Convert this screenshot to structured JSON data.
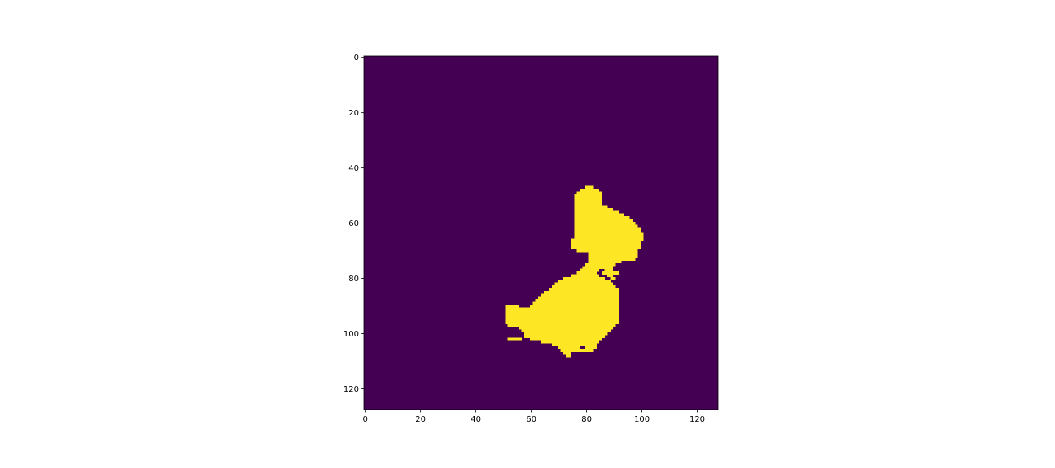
{
  "chart_data": {
    "type": "heatmap",
    "title": "",
    "xlabel": "",
    "ylabel": "",
    "grid": false,
    "xlim": [
      0,
      128
    ],
    "ylim": [
      128,
      0
    ],
    "x_ticks": [
      "0",
      "20",
      "40",
      "60",
      "80",
      "100",
      "120"
    ],
    "y_ticks": [
      "0",
      "20",
      "40",
      "60",
      "80",
      "100",
      "120"
    ],
    "background_value": 0,
    "foreground_value": 1,
    "colors": {
      "background": "#440154",
      "foreground": "#fde725",
      "axes": "#000000"
    },
    "mask_rows": [
      {
        "y": 47,
        "spans": [
          [
            80,
            82
          ]
        ]
      },
      {
        "y": 48,
        "spans": [
          [
            78,
            84
          ]
        ]
      },
      {
        "y": 49,
        "spans": [
          [
            77,
            85
          ]
        ]
      },
      {
        "y": 50,
        "spans": [
          [
            76,
            85
          ]
        ]
      },
      {
        "y": 51,
        "spans": [
          [
            76,
            85
          ]
        ]
      },
      {
        "y": 52,
        "spans": [
          [
            76,
            85
          ]
        ]
      },
      {
        "y": 53,
        "spans": [
          [
            76,
            85
          ]
        ]
      },
      {
        "y": 54,
        "spans": [
          [
            76,
            87
          ]
        ]
      },
      {
        "y": 55,
        "spans": [
          [
            76,
            89
          ]
        ]
      },
      {
        "y": 56,
        "spans": [
          [
            76,
            91
          ]
        ]
      },
      {
        "y": 57,
        "spans": [
          [
            76,
            93
          ]
        ]
      },
      {
        "y": 58,
        "spans": [
          [
            76,
            95
          ]
        ]
      },
      {
        "y": 59,
        "spans": [
          [
            76,
            96
          ]
        ]
      },
      {
        "y": 60,
        "spans": [
          [
            76,
            97
          ]
        ]
      },
      {
        "y": 61,
        "spans": [
          [
            76,
            98
          ]
        ]
      },
      {
        "y": 62,
        "spans": [
          [
            76,
            99
          ]
        ]
      },
      {
        "y": 63,
        "spans": [
          [
            76,
            99
          ]
        ]
      },
      {
        "y": 64,
        "spans": [
          [
            76,
            100
          ]
        ]
      },
      {
        "y": 65,
        "spans": [
          [
            76,
            100
          ]
        ]
      },
      {
        "y": 66,
        "spans": [
          [
            75,
            100
          ]
        ]
      },
      {
        "y": 67,
        "spans": [
          [
            75,
            99
          ]
        ]
      },
      {
        "y": 68,
        "spans": [
          [
            75,
            99
          ]
        ]
      },
      {
        "y": 69,
        "spans": [
          [
            75,
            99
          ]
        ]
      },
      {
        "y": 70,
        "spans": [
          [
            77,
            98
          ]
        ]
      },
      {
        "y": 71,
        "spans": [
          [
            81,
            98
          ]
        ]
      },
      {
        "y": 72,
        "spans": [
          [
            81,
            98
          ]
        ]
      },
      {
        "y": 73,
        "spans": [
          [
            81,
            97
          ]
        ]
      },
      {
        "y": 74,
        "spans": [
          [
            81,
            92
          ]
        ]
      },
      {
        "y": 75,
        "spans": [
          [
            80,
            90
          ]
        ]
      },
      {
        "y": 76,
        "spans": [
          [
            79,
            89
          ]
        ]
      },
      {
        "y": 77,
        "spans": [
          [
            78,
            84
          ],
          [
            87,
            89
          ]
        ]
      },
      {
        "y": 78,
        "spans": [
          [
            77,
            83
          ],
          [
            86,
            91
          ]
        ]
      },
      {
        "y": 79,
        "spans": [
          [
            75,
            84
          ],
          [
            88,
            89
          ]
        ]
      },
      {
        "y": 80,
        "spans": [
          [
            72,
            86
          ],
          [
            89,
            90
          ]
        ]
      },
      {
        "y": 81,
        "spans": [
          [
            70,
            88
          ]
        ]
      },
      {
        "y": 82,
        "spans": [
          [
            69,
            89
          ]
        ]
      },
      {
        "y": 83,
        "spans": [
          [
            68,
            90
          ]
        ]
      },
      {
        "y": 84,
        "spans": [
          [
            67,
            91
          ]
        ]
      },
      {
        "y": 85,
        "spans": [
          [
            65,
            91
          ]
        ]
      },
      {
        "y": 86,
        "spans": [
          [
            64,
            91
          ]
        ]
      },
      {
        "y": 87,
        "spans": [
          [
            63,
            91
          ]
        ]
      },
      {
        "y": 88,
        "spans": [
          [
            62,
            91
          ]
        ]
      },
      {
        "y": 89,
        "spans": [
          [
            61,
            91
          ]
        ]
      },
      {
        "y": 90,
        "spans": [
          [
            51,
            55
          ],
          [
            60,
            91
          ]
        ]
      },
      {
        "y": 91,
        "spans": [
          [
            51,
            91
          ]
        ]
      },
      {
        "y": 92,
        "spans": [
          [
            51,
            91
          ]
        ]
      },
      {
        "y": 93,
        "spans": [
          [
            51,
            91
          ]
        ]
      },
      {
        "y": 94,
        "spans": [
          [
            51,
            91
          ]
        ]
      },
      {
        "y": 95,
        "spans": [
          [
            51,
            91
          ]
        ]
      },
      {
        "y": 96,
        "spans": [
          [
            51,
            91
          ]
        ]
      },
      {
        "y": 97,
        "spans": [
          [
            52,
            90
          ]
        ]
      },
      {
        "y": 98,
        "spans": [
          [
            56,
            89
          ]
        ]
      },
      {
        "y": 99,
        "spans": [
          [
            57,
            88
          ]
        ]
      },
      {
        "y": 100,
        "spans": [
          [
            58,
            87
          ]
        ]
      },
      {
        "y": 101,
        "spans": [
          [
            58,
            86
          ]
        ]
      },
      {
        "y": 102,
        "spans": [
          [
            52,
            56
          ],
          [
            60,
            85
          ]
        ]
      },
      {
        "y": 103,
        "spans": [
          [
            64,
            84
          ]
        ]
      },
      {
        "y": 104,
        "spans": [
          [
            68,
            83
          ]
        ]
      },
      {
        "y": 105,
        "spans": [
          [
            70,
            77
          ],
          [
            80,
            83
          ]
        ]
      },
      {
        "y": 106,
        "spans": [
          [
            71,
            76
          ],
          [
            77,
            82
          ]
        ]
      },
      {
        "y": 107,
        "spans": [
          [
            72,
            74
          ]
        ]
      },
      {
        "y": 108,
        "spans": [
          [
            73,
            74
          ]
        ]
      }
    ]
  }
}
